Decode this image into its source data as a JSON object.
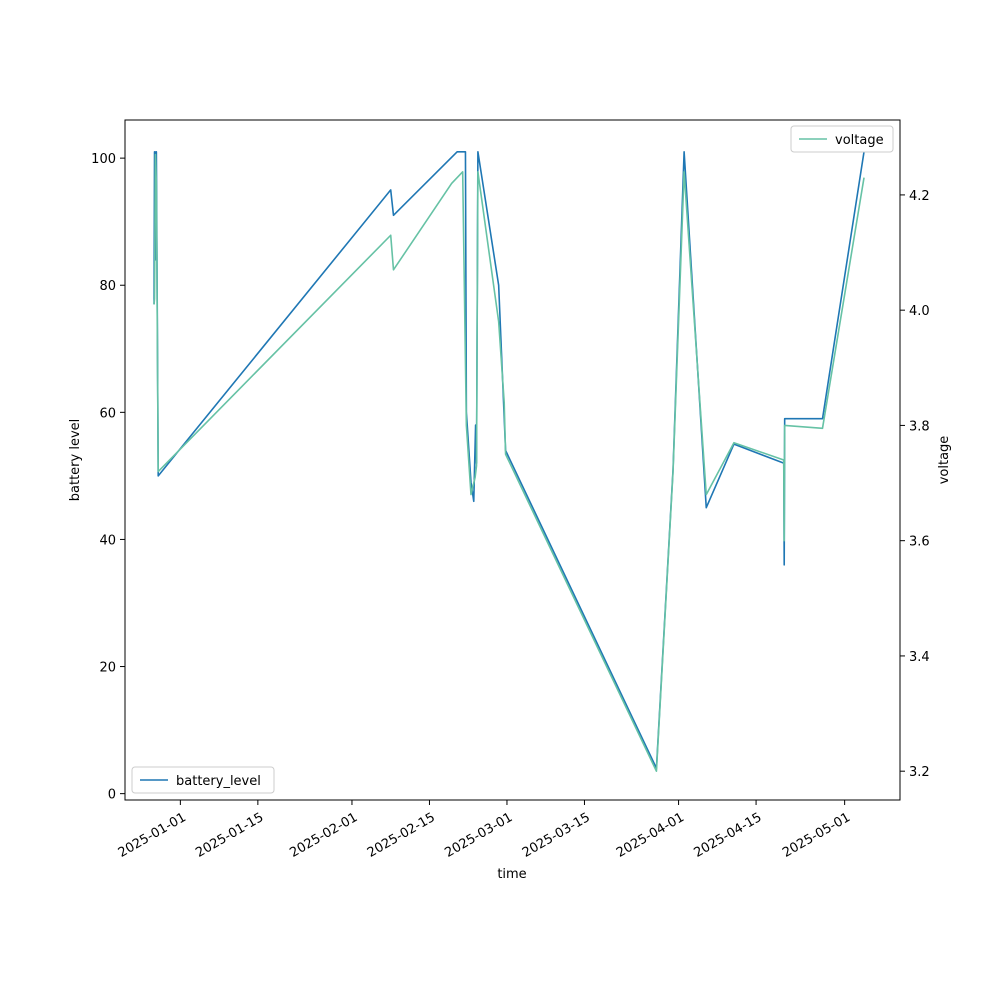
{
  "chart_data": {
    "type": "line",
    "title": "",
    "xlabel": "time",
    "ylabel_left": "battery level",
    "ylabel_right": "voltage",
    "x_ticks": [
      "2025-01-01",
      "2025-01-15",
      "2025-02-01",
      "2025-02-15",
      "2025-03-01",
      "2025-03-15",
      "2025-04-01",
      "2025-04-15",
      "2025-05-01"
    ],
    "y_left_ticks": [
      0,
      20,
      40,
      60,
      80,
      100
    ],
    "y_right_ticks": [
      3.2,
      3.4,
      3.6,
      3.8,
      4.0,
      4.2
    ],
    "xlim": [
      "2024-12-22",
      "2025-05-11"
    ],
    "ylim_left": [
      -1,
      106
    ],
    "ylim_right": [
      3.15,
      4.33
    ],
    "grid": false,
    "series": [
      {
        "name": "battery_level",
        "axis": "left",
        "color": "#1f77b4",
        "legend_position": "lower-left",
        "points": [
          [
            "2024-12-27T06:00",
            77
          ],
          [
            "2024-12-27T08:00",
            101
          ],
          [
            "2024-12-27T10:00",
            92
          ],
          [
            "2024-12-27T12:00",
            84
          ],
          [
            "2024-12-27T14:00",
            101
          ],
          [
            "2024-12-27T16:00",
            101
          ],
          [
            "2024-12-28T00:00",
            50
          ],
          [
            "2025-02-08T00:00",
            95
          ],
          [
            "2025-02-08T12:00",
            91
          ],
          [
            "2025-02-20T00:00",
            101
          ],
          [
            "2025-02-21T12:00",
            101
          ],
          [
            "2025-02-21T16:00",
            60
          ],
          [
            "2025-02-22T12:00",
            49
          ],
          [
            "2025-02-23T00:00",
            46
          ],
          [
            "2025-02-23T08:00",
            58
          ],
          [
            "2025-02-23T12:00",
            52
          ],
          [
            "2025-02-23T18:00",
            101
          ],
          [
            "2025-02-27T12:00",
            80
          ],
          [
            "2025-02-28T18:00",
            54
          ],
          [
            "2025-03-28T00:00",
            4
          ],
          [
            "2025-03-31T00:00",
            51
          ],
          [
            "2025-04-02T00:00",
            101
          ],
          [
            "2025-04-06T00:00",
            45
          ],
          [
            "2025-04-11T00:00",
            55
          ],
          [
            "2025-04-20T00:00",
            52
          ],
          [
            "2025-04-20T02:00",
            36
          ],
          [
            "2025-04-20T04:00",
            59
          ],
          [
            "2025-04-27T00:00",
            59
          ],
          [
            "2025-05-04T12:00",
            101
          ]
        ]
      },
      {
        "name": "voltage",
        "axis": "right",
        "color": "#66c2a5",
        "legend_position": "upper-right",
        "points": [
          [
            "2024-12-27T06:00",
            4.01
          ],
          [
            "2024-12-27T08:00",
            4.02
          ],
          [
            "2024-12-27T12:00",
            4.27
          ],
          [
            "2024-12-27T16:00",
            4.22
          ],
          [
            "2024-12-28T00:00",
            3.72
          ],
          [
            "2025-02-08T00:00",
            4.13
          ],
          [
            "2025-02-08T12:00",
            4.07
          ],
          [
            "2025-02-19T00:00",
            4.22
          ],
          [
            "2025-02-21T00:00",
            4.24
          ],
          [
            "2025-02-21T16:00",
            3.8
          ],
          [
            "2025-02-22T12:00",
            3.68
          ],
          [
            "2025-02-23T06:00",
            3.71
          ],
          [
            "2025-02-23T12:00",
            3.73
          ],
          [
            "2025-02-23T18:00",
            4.24
          ],
          [
            "2025-02-27T12:00",
            3.98
          ],
          [
            "2025-02-28T12:00",
            3.84
          ],
          [
            "2025-02-28T18:00",
            3.75
          ],
          [
            "2025-03-28T00:00",
            3.2
          ],
          [
            "2025-03-31T00:00",
            3.72
          ],
          [
            "2025-04-02T00:00",
            4.24
          ],
          [
            "2025-04-06T00:00",
            3.68
          ],
          [
            "2025-04-11T00:00",
            3.77
          ],
          [
            "2025-04-20T00:00",
            3.74
          ],
          [
            "2025-04-20T02:00",
            3.6
          ],
          [
            "2025-04-20T04:00",
            3.8
          ],
          [
            "2025-04-27T00:00",
            3.795
          ],
          [
            "2025-05-04T12:00",
            4.23
          ]
        ]
      }
    ]
  }
}
